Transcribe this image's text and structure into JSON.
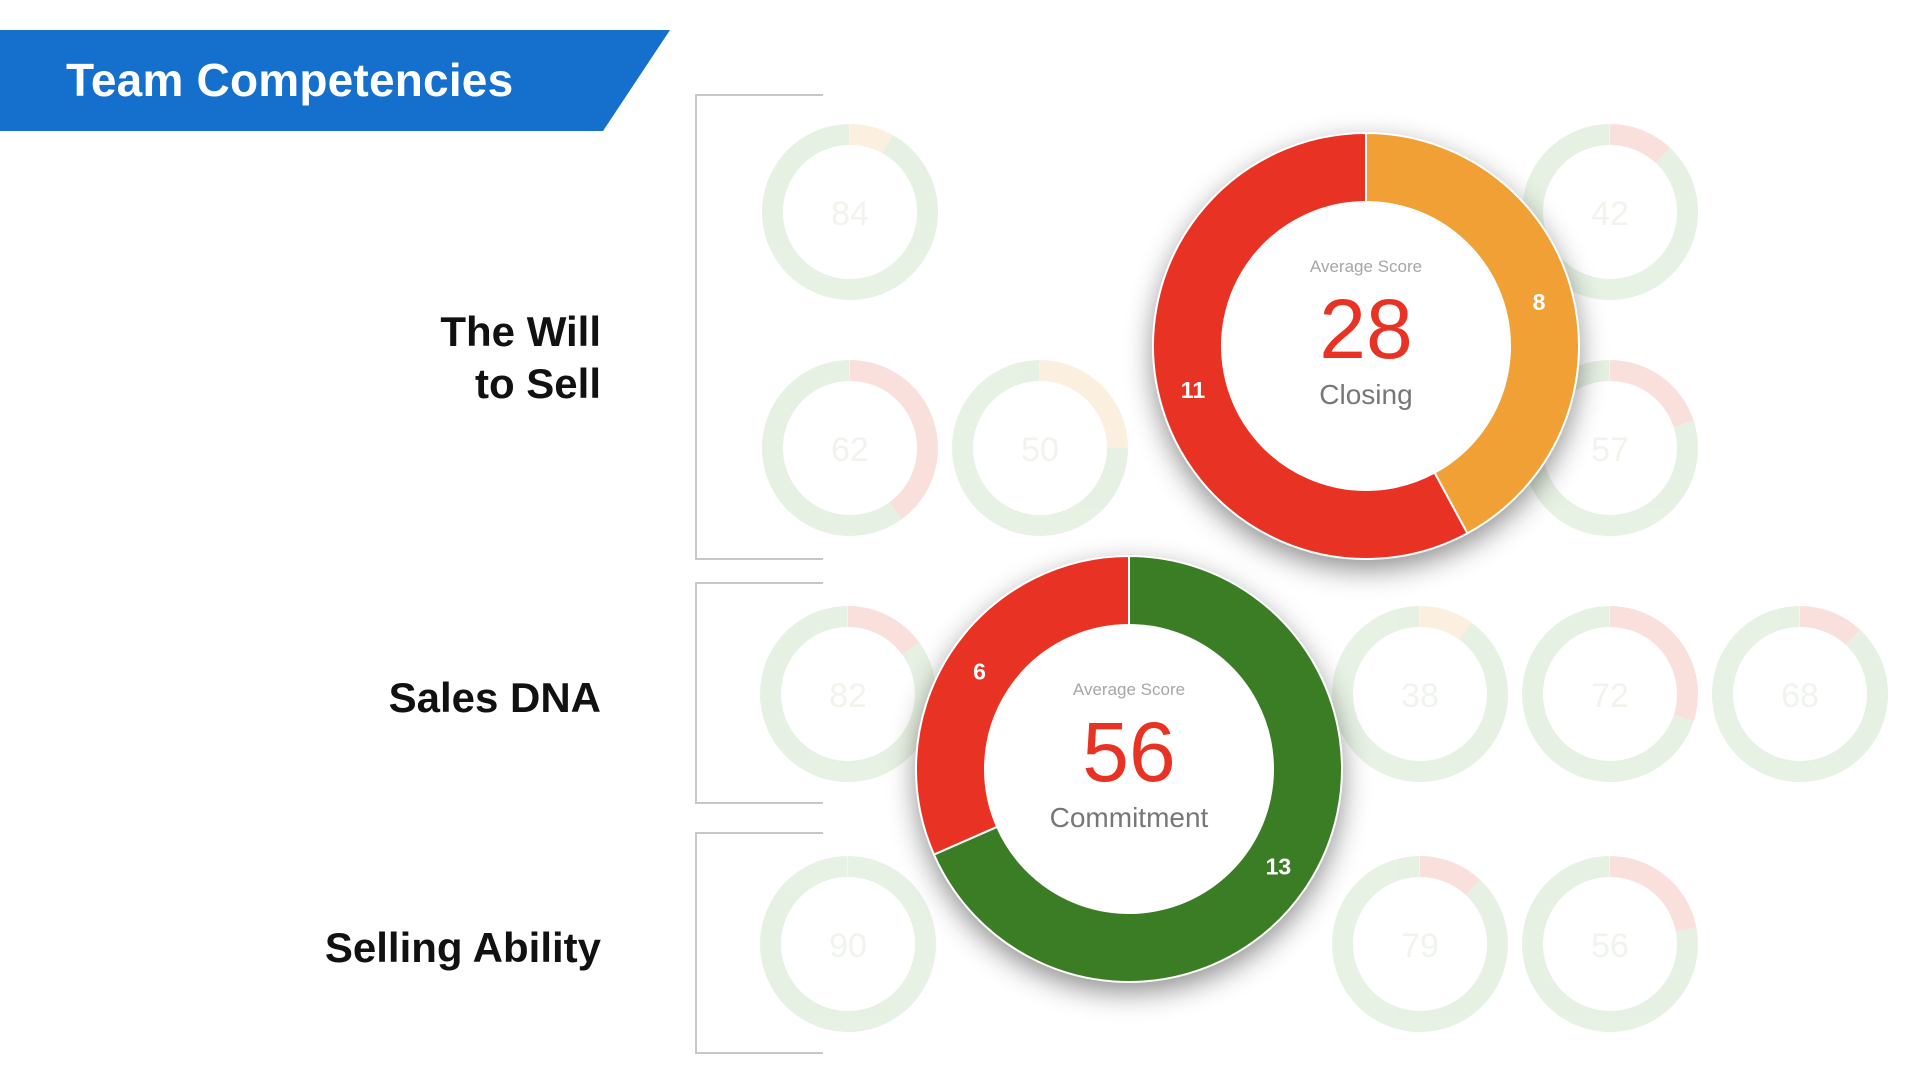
{
  "header": {
    "title": "Team Competencies"
  },
  "sections": [
    {
      "label_line1": "The Will",
      "label_line2": "to Sell"
    },
    {
      "label": "Sales DNA"
    },
    {
      "label": "Selling Ability"
    }
  ],
  "colors": {
    "banner": "#1470cc",
    "red": "#e83324",
    "orange": "#f0a035",
    "green": "#3a7d25",
    "faded_green": "#d4e6cd",
    "faded_red": "#f6c8c3",
    "faded_orange": "#f8e3c6"
  },
  "chart_data": [
    {
      "type": "donut",
      "center_caption": "Average Score",
      "score": "28",
      "name": "Closing",
      "segments": [
        {
          "value": 8,
          "color": "#f0a035"
        },
        {
          "value": 11,
          "color": "#e83324"
        }
      ]
    },
    {
      "type": "donut",
      "center_caption": "Average Score",
      "score": "56",
      "name": "Commitment",
      "segments": [
        {
          "value": 13,
          "color": "#3a7d25"
        },
        {
          "value": 6,
          "color": "#e83324"
        }
      ]
    }
  ],
  "faded_charts": [
    {
      "score": "84"
    },
    {
      "score": "42"
    },
    {
      "score": "62"
    },
    {
      "score": "50"
    },
    {
      "score": "57"
    },
    {
      "score": "82"
    },
    {
      "score": "38"
    },
    {
      "score": "72"
    },
    {
      "score": "68"
    },
    {
      "score": "90"
    },
    {
      "score": "79"
    },
    {
      "score": "56"
    }
  ]
}
